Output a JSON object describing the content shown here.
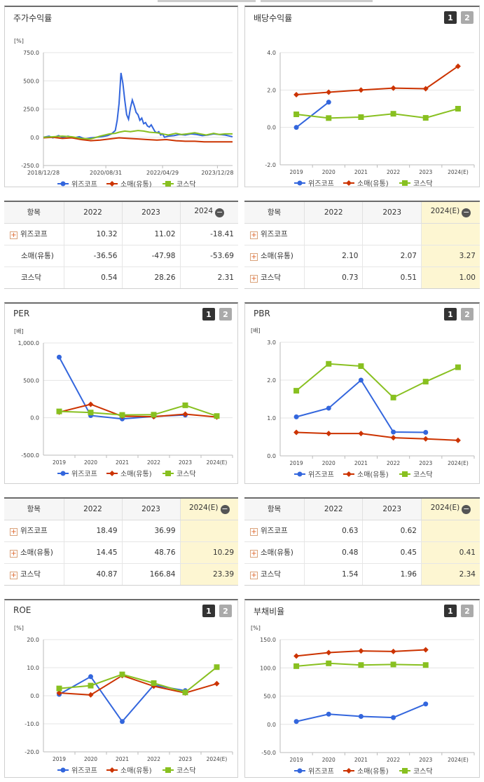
{
  "colors": {
    "wizcorp": "#3366dd",
    "retail": "#cc3300",
    "kosdaq": "#88c020",
    "highlight": "#fdf6d2"
  },
  "legend": [
    "위즈코프",
    "소매(유통)",
    "코스닥"
  ],
  "buttons": [
    "1",
    "2"
  ],
  "charts": [
    {
      "title": "주가수익률",
      "type": "line",
      "unit": "[%]",
      "yticks": [
        "750.0",
        "500.0",
        "250.0",
        "0.0",
        "-250.0"
      ],
      "ylim": [
        -250,
        750
      ],
      "xticks": [
        "2018/12/28",
        "2020/08/31",
        "2022/04/29",
        "2023/12/28"
      ],
      "xlim": [
        0,
        100
      ],
      "series": [
        {
          "name": "위즈코프",
          "x": [
            0,
            3,
            5,
            8,
            10,
            13,
            16,
            19,
            22,
            25,
            28,
            31,
            34,
            36,
            38,
            39,
            40,
            41,
            42,
            43,
            44,
            45,
            46,
            47,
            48,
            49,
            50,
            51,
            52,
            53,
            54,
            55,
            56,
            57,
            58,
            59,
            60,
            61,
            62,
            63,
            64,
            66,
            69,
            72,
            75,
            78,
            81,
            84,
            87,
            90,
            93,
            96,
            100
          ],
          "y": [
            0,
            10,
            -5,
            15,
            0,
            10,
            -5,
            5,
            -15,
            -5,
            0,
            5,
            15,
            30,
            60,
            150,
            300,
            570,
            480,
            330,
            200,
            160,
            260,
            330,
            280,
            220,
            200,
            150,
            170,
            120,
            130,
            100,
            90,
            110,
            80,
            50,
            40,
            50,
            20,
            30,
            0,
            10,
            15,
            25,
            20,
            30,
            25,
            15,
            20,
            30,
            25,
            20,
            5
          ]
        },
        {
          "name": "소매(유통)",
          "x": [
            0,
            5,
            10,
            15,
            20,
            25,
            30,
            35,
            40,
            45,
            50,
            55,
            60,
            65,
            70,
            75,
            80,
            85,
            90,
            95,
            100
          ],
          "y": [
            -5,
            0,
            -10,
            -5,
            -20,
            -30,
            -25,
            -15,
            -5,
            -10,
            -15,
            -20,
            -25,
            -20,
            -30,
            -35,
            -35,
            -40,
            -40,
            -40,
            -40
          ]
        },
        {
          "name": "코스닥",
          "x": [
            0,
            5,
            10,
            15,
            20,
            25,
            30,
            35,
            38,
            40,
            43,
            46,
            50,
            53,
            56,
            60,
            63,
            66,
            70,
            73,
            76,
            80,
            83,
            86,
            90,
            93,
            96,
            100
          ],
          "y": [
            0,
            5,
            10,
            5,
            -10,
            -15,
            10,
            30,
            35,
            45,
            55,
            50,
            60,
            55,
            45,
            40,
            30,
            20,
            35,
            25,
            30,
            40,
            30,
            20,
            35,
            25,
            30,
            30
          ]
        }
      ]
    },
    {
      "title": "배당수익률",
      "type": "line",
      "unit": "",
      "yticks": [
        "4.0",
        "2.0",
        "0.0",
        "-2.0"
      ],
      "ylim": [
        -2,
        4
      ],
      "xticks": [
        "2019",
        "2020",
        "2021",
        "2022",
        "2023",
        "2024(E)"
      ],
      "series": [
        {
          "name": "위즈코프",
          "y": [
            0.0,
            1.35,
            null,
            null,
            null,
            null
          ]
        },
        {
          "name": "소매(유통)",
          "y": [
            1.75,
            1.88,
            2.0,
            2.1,
            2.07,
            3.27
          ]
        },
        {
          "name": "코스닥",
          "y": [
            0.7,
            0.5,
            0.55,
            0.73,
            0.51,
            1.0
          ]
        }
      ]
    },
    {
      "title": "PER",
      "type": "line",
      "unit": "[배]",
      "yticks": [
        "1,000.0",
        "500.0",
        "0.0",
        "-500.0"
      ],
      "ylim": [
        -500,
        1000
      ],
      "xticks": [
        "2019",
        "2020",
        "2021",
        "2022",
        "2023",
        "2024(E)"
      ],
      "series": [
        {
          "name": "위즈코프",
          "y": [
            810,
            30,
            -15,
            18.49,
            36.99,
            null
          ]
        },
        {
          "name": "소매(유통)",
          "y": [
            75,
            180,
            20,
            14.45,
            48.76,
            10.29
          ]
        },
        {
          "name": "코스닥",
          "y": [
            85,
            70,
            38,
            40.87,
            166.84,
            23.39
          ]
        }
      ]
    },
    {
      "title": "PBR",
      "type": "line",
      "unit": "[배]",
      "yticks": [
        "3.0",
        "2.0",
        "1.0",
        "0.0"
      ],
      "ylim": [
        0,
        3
      ],
      "xticks": [
        "2019",
        "2020",
        "2021",
        "2022",
        "2023",
        "2024(E)"
      ],
      "series": [
        {
          "name": "위즈코프",
          "y": [
            1.03,
            1.26,
            2.0,
            0.63,
            0.62,
            null
          ]
        },
        {
          "name": "소매(유통)",
          "y": [
            0.62,
            0.59,
            0.59,
            0.48,
            0.45,
            0.41
          ]
        },
        {
          "name": "코스닥",
          "y": [
            1.72,
            2.43,
            2.37,
            1.54,
            1.96,
            2.34
          ]
        }
      ]
    },
    {
      "title": "ROE",
      "type": "line",
      "unit": "[%]",
      "yticks": [
        "20.0",
        "10.0",
        "0.0",
        "-10.0",
        "-20.0"
      ],
      "ylim": [
        -20,
        20
      ],
      "xticks": [
        "2019",
        "2020",
        "2021",
        "2022",
        "2023",
        "2024(E)"
      ],
      "series": [
        {
          "name": "위즈코프",
          "y": [
            0.5,
            6.8,
            -9.2,
            3.8,
            1.8,
            null
          ]
        },
        {
          "name": "소매(유통)",
          "y": [
            1.0,
            0.3,
            7.2,
            3.4,
            1.0,
            4.3
          ]
        },
        {
          "name": "코스닥",
          "y": [
            2.6,
            3.6,
            7.6,
            4.5,
            1.2,
            10.2
          ]
        }
      ]
    },
    {
      "title": "부채비율",
      "type": "line",
      "unit": "[%]",
      "yticks": [
        "150.0",
        "100.0",
        "50.0",
        "0.0",
        "-50.0"
      ],
      "ylim": [
        -50,
        150
      ],
      "xticks": [
        "2019",
        "2020",
        "2021",
        "2022",
        "2023",
        "2024(E)"
      ],
      "series": [
        {
          "name": "위즈코프",
          "y": [
            5,
            18,
            14,
            12,
            36,
            null
          ]
        },
        {
          "name": "소매(유통)",
          "y": [
            121,
            127,
            130,
            129,
            132,
            null
          ]
        },
        {
          "name": "코스닥",
          "y": [
            103,
            108,
            105,
            106,
            105,
            null
          ]
        }
      ]
    }
  ],
  "tables": [
    {
      "header": [
        "항목",
        "2022",
        "2023",
        "2024"
      ],
      "rows": [
        {
          "name": "위즈코프",
          "plus": true,
          "values": [
            "10.32",
            "11.02",
            "-18.41"
          ]
        },
        {
          "name": "소매(유통)",
          "plus": false,
          "values": [
            "-36.56",
            "-47.98",
            "-53.69"
          ]
        },
        {
          "name": "코스닥",
          "plus": false,
          "values": [
            "0.54",
            "28.26",
            "2.31"
          ]
        }
      ]
    },
    {
      "header": [
        "항목",
        "2022",
        "2023",
        "2024(E)"
      ],
      "rows": [
        {
          "name": "위즈코프",
          "plus": true,
          "values": [
            "",
            "",
            ""
          ]
        },
        {
          "name": "소매(유통)",
          "plus": true,
          "values": [
            "2.10",
            "2.07",
            "3.27"
          ]
        },
        {
          "name": "코스닥",
          "plus": true,
          "values": [
            "0.73",
            "0.51",
            "1.00"
          ]
        }
      ]
    },
    {
      "header": [
        "항목",
        "2022",
        "2023",
        "2024(E)"
      ],
      "rows": [
        {
          "name": "위즈코프",
          "plus": true,
          "values": [
            "18.49",
            "36.99",
            ""
          ]
        },
        {
          "name": "소매(유통)",
          "plus": true,
          "values": [
            "14.45",
            "48.76",
            "10.29"
          ]
        },
        {
          "name": "코스닥",
          "plus": true,
          "values": [
            "40.87",
            "166.84",
            "23.39"
          ]
        }
      ]
    },
    {
      "header": [
        "항목",
        "2022",
        "2023",
        "2024(E)"
      ],
      "rows": [
        {
          "name": "위즈코프",
          "plus": true,
          "values": [
            "0.63",
            "0.62",
            ""
          ]
        },
        {
          "name": "소매(유통)",
          "plus": true,
          "values": [
            "0.48",
            "0.45",
            "0.41"
          ]
        },
        {
          "name": "코스닥",
          "plus": true,
          "values": [
            "1.54",
            "1.96",
            "2.34"
          ]
        }
      ]
    }
  ]
}
